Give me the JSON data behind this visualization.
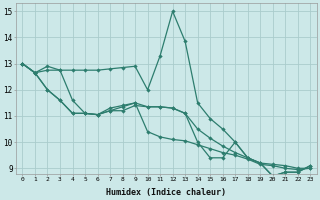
{
  "xlabel": "Humidex (Indice chaleur)",
  "bg_color": "#cce8e8",
  "grid_color": "#aacccc",
  "line_color": "#2d7d6e",
  "xlim": [
    -0.5,
    23.5
  ],
  "ylim": [
    8.8,
    15.3
  ],
  "xticks": [
    0,
    1,
    2,
    3,
    4,
    5,
    6,
    7,
    8,
    9,
    10,
    11,
    12,
    13,
    14,
    15,
    16,
    17,
    18,
    19,
    20,
    21,
    22,
    23
  ],
  "yticks": [
    9,
    10,
    11,
    12,
    13,
    14,
    15
  ],
  "line1_x": [
    0,
    1,
    2,
    3,
    4,
    5,
    6,
    7,
    8,
    9,
    10,
    11,
    12,
    13,
    14,
    15,
    16,
    17,
    18,
    19,
    20,
    21,
    22,
    23
  ],
  "line1_y": [
    13.0,
    12.65,
    12.9,
    12.75,
    12.75,
    12.75,
    12.75,
    12.8,
    12.85,
    12.9,
    12.0,
    13.3,
    15.0,
    13.85,
    11.5,
    10.9,
    10.5,
    10.0,
    9.4,
    9.2,
    8.7,
    8.85,
    8.85,
    9.1
  ],
  "line2_x": [
    0,
    1,
    2,
    3,
    4,
    5,
    6,
    7,
    8,
    9,
    10,
    11,
    12,
    13,
    14,
    15,
    16,
    17,
    18,
    19,
    20,
    21,
    22,
    23
  ],
  "line2_y": [
    13.0,
    12.65,
    12.0,
    11.6,
    11.1,
    11.1,
    11.05,
    11.2,
    11.2,
    11.4,
    11.35,
    11.35,
    11.3,
    11.1,
    10.5,
    10.15,
    9.85,
    9.6,
    9.4,
    9.2,
    9.15,
    9.1,
    9.0,
    9.0
  ],
  "line3_x": [
    0,
    1,
    2,
    3,
    4,
    5,
    6,
    7,
    8,
    9,
    10,
    11,
    12,
    13,
    14,
    15,
    16,
    17,
    18,
    19,
    20,
    21,
    22,
    23
  ],
  "line3_y": [
    13.0,
    12.65,
    12.0,
    11.6,
    11.1,
    11.1,
    11.05,
    11.3,
    11.4,
    11.5,
    10.4,
    10.2,
    10.1,
    10.05,
    9.9,
    9.75,
    9.6,
    9.5,
    9.35,
    9.15,
    9.1,
    9.0,
    8.95,
    9.0
  ],
  "line4_x": [
    0,
    1,
    2,
    3,
    4,
    5,
    6,
    7,
    8,
    9,
    10,
    11,
    12,
    13,
    14,
    15,
    16,
    17,
    18,
    19,
    20,
    21,
    22,
    23
  ],
  "line4_y": [
    13.0,
    12.65,
    12.75,
    12.75,
    11.6,
    11.1,
    11.05,
    11.2,
    11.35,
    11.5,
    11.35,
    11.35,
    11.3,
    11.1,
    10.0,
    9.4,
    9.4,
    10.0,
    9.4,
    9.2,
    8.7,
    8.85,
    8.85,
    9.1
  ]
}
